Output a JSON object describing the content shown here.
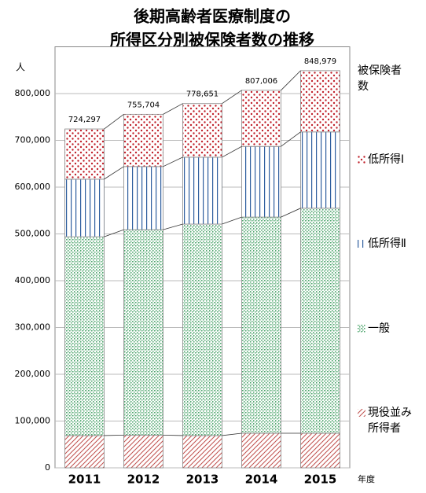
{
  "chart_data": {
    "type": "stacked_bar",
    "title": [
      "後期高齢者医療制度の",
      "所得区分別被保険者数の推移"
    ],
    "y_unit_label": "人",
    "x_unit_label": "年度",
    "legend_title": "被保険者数",
    "categories": [
      "2011",
      "2012",
      "2013",
      "2014",
      "2015"
    ],
    "series": [
      {
        "name": "現役並み所得者",
        "color": "#c0504d",
        "pattern": "hatch",
        "values": [
          69000,
          70000,
          69000,
          74000,
          74000
        ]
      },
      {
        "name": "一般",
        "color": "#4aa36a",
        "pattern": "cross",
        "values": [
          425000,
          439000,
          452000,
          462000,
          481000
        ]
      },
      {
        "name": "低所得Ⅱ",
        "color": "#2e5e9e",
        "pattern": "vertical",
        "values": [
          123000,
          135000,
          143000,
          151000,
          163000
        ]
      },
      {
        "name": "低所得Ⅰ",
        "color": "#c0202a",
        "pattern": "dots",
        "values": [
          107297,
          111704,
          114651,
          120006,
          130979
        ]
      }
    ],
    "totals": [
      724297,
      755704,
      778651,
      807006,
      848979
    ],
    "total_labels": [
      "724,297",
      "755,704",
      "778,651",
      "807,006",
      "848,979"
    ],
    "ylim": [
      0,
      900000
    ],
    "yticks": [
      {
        "value": 0,
        "label": "0"
      },
      {
        "value": 100000,
        "label": "100,000"
      },
      {
        "value": 200000,
        "label": "200,000"
      },
      {
        "value": 300000,
        "label": "300,000"
      },
      {
        "value": 400000,
        "label": "400,000"
      },
      {
        "value": 500000,
        "label": "500,000"
      },
      {
        "value": 600000,
        "label": "600,000"
      },
      {
        "value": 700000,
        "label": "700,000"
      },
      {
        "value": 800000,
        "label": "800,000"
      }
    ],
    "grid": true
  }
}
